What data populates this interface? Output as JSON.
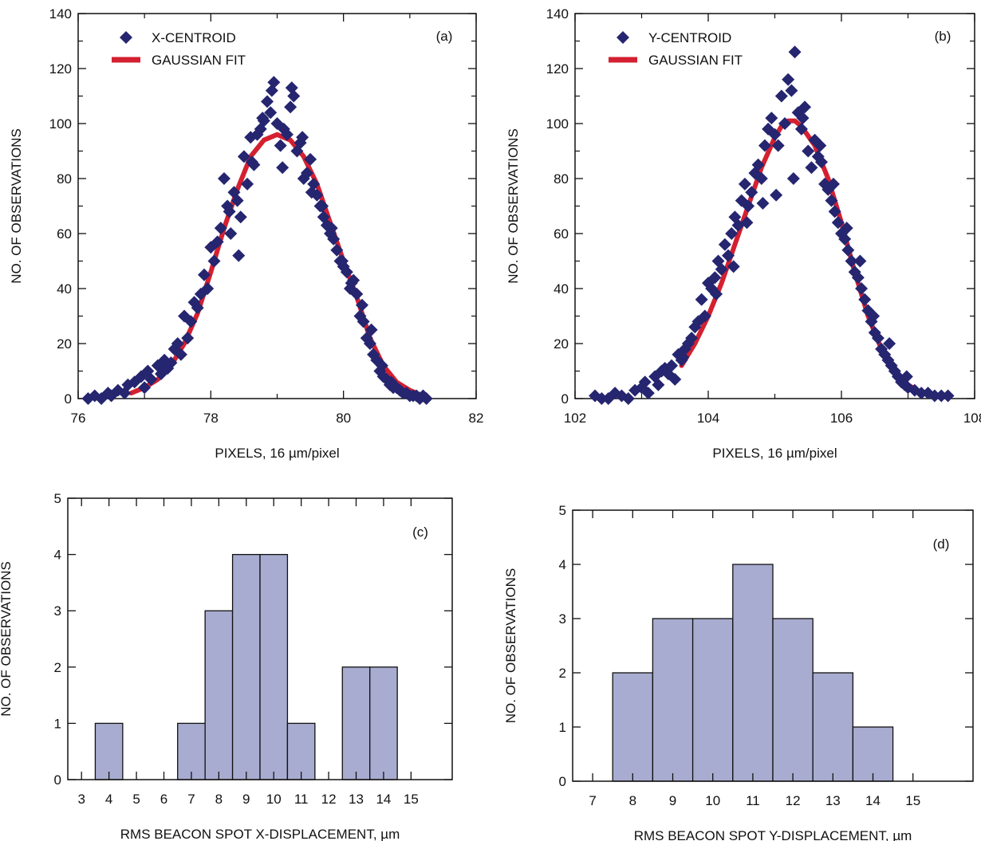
{
  "chart_data": [
    {
      "id": "a",
      "type": "scatter",
      "panel_label": "(a)",
      "xlabel": "PIXELS, 16 µm/pixel",
      "ylabel": "NO. OF OBSERVATIONS",
      "xlim": [
        76,
        82
      ],
      "ylim": [
        0,
        140
      ],
      "xticks": [
        76,
        78,
        80,
        82
      ],
      "yticks": [
        0,
        20,
        40,
        60,
        80,
        100,
        120,
        140
      ],
      "legend": {
        "position": "top-left",
        "entries": [
          "X-CENTROID",
          "GAUSSIAN FIT"
        ]
      },
      "colors": {
        "points": "#252570",
        "fit": "#d42030"
      },
      "series": [
        {
          "name": "X-CENTROID",
          "kind": "points",
          "x": [
            76.15,
            76.25,
            76.35,
            76.45,
            76.5,
            76.6,
            76.7,
            76.75,
            76.85,
            76.95,
            77.0,
            77.05,
            77.1,
            77.2,
            77.25,
            77.3,
            77.4,
            77.45,
            77.5,
            77.55,
            77.6,
            77.7,
            77.75,
            77.8,
            77.85,
            77.9,
            77.95,
            78.0,
            78.05,
            78.1,
            78.15,
            78.2,
            78.25,
            78.3,
            78.35,
            78.4,
            78.45,
            78.5,
            78.55,
            78.6,
            78.65,
            78.7,
            78.75,
            78.8,
            78.85,
            78.9,
            78.95,
            79.0,
            79.05,
            79.1,
            79.15,
            79.2,
            79.25,
            79.3,
            79.35,
            79.4,
            79.45,
            79.5,
            79.55,
            79.6,
            79.65,
            79.7,
            79.75,
            79.8,
            79.85,
            79.9,
            79.95,
            80.0,
            80.05,
            80.1,
            80.15,
            80.2,
            80.25,
            80.3,
            80.35,
            80.4,
            80.45,
            80.5,
            80.55,
            80.6,
            80.65,
            80.7,
            80.75,
            80.8,
            80.85,
            80.9,
            80.95,
            81.0,
            81.05,
            81.1,
            81.15,
            81.2,
            81.25,
            77.35,
            77.65,
            78.28,
            78.42,
            78.62,
            78.78,
            78.92,
            79.08,
            79.22,
            79.38,
            79.52,
            79.68,
            79.82,
            79.98,
            80.12,
            80.28,
            80.42,
            80.58,
            80.72
          ],
          "y": [
            0,
            1,
            0,
            2,
            1,
            3,
            2,
            5,
            6,
            8,
            4,
            10,
            7,
            12,
            9,
            14,
            13,
            18,
            20,
            16,
            30,
            28,
            35,
            33,
            38,
            45,
            40,
            55,
            50,
            57,
            62,
            80,
            70,
            60,
            75,
            72,
            66,
            88,
            78,
            95,
            85,
            96,
            98,
            101,
            108,
            104,
            115,
            100,
            92,
            98,
            96,
            106,
            110,
            90,
            93,
            80,
            82,
            87,
            78,
            74,
            70,
            66,
            63,
            60,
            58,
            54,
            50,
            48,
            46,
            40,
            43,
            38,
            30,
            28,
            22,
            20,
            16,
            14,
            10,
            8,
            7,
            5,
            4,
            4,
            3,
            2,
            2,
            1,
            1,
            1,
            0,
            1,
            0,
            11,
            22,
            68,
            52,
            86,
            102,
            112,
            84,
            113,
            95,
            75,
            70,
            62,
            50,
            42,
            34,
            25,
            12,
            6
          ],
          "sizes_unit": "data"
        },
        {
          "name": "GAUSSIAN FIT",
          "kind": "line",
          "x": [
            76.8,
            77.0,
            77.2,
            77.4,
            77.6,
            77.8,
            78.0,
            78.2,
            78.4,
            78.6,
            78.8,
            79.0,
            79.1,
            79.2,
            79.4,
            79.6,
            79.8,
            80.0,
            80.2,
            80.4,
            80.6,
            80.8,
            81.0,
            81.2
          ],
          "y": [
            2,
            4,
            7,
            12,
            20,
            31,
            46,
            62,
            76,
            88,
            94,
            96,
            95,
            94,
            88,
            78,
            64,
            50,
            37,
            22,
            12,
            6,
            3,
            1
          ]
        }
      ]
    },
    {
      "id": "b",
      "type": "scatter",
      "panel_label": "(b)",
      "xlabel": "PIXELS, 16 µm/pixel",
      "ylabel": "NO. OF OBSERVATIONS",
      "xlim": [
        102,
        108
      ],
      "ylim": [
        0,
        140
      ],
      "xticks": [
        102,
        104,
        106,
        108
      ],
      "yticks": [
        0,
        20,
        40,
        60,
        80,
        100,
        120,
        140
      ],
      "legend": {
        "position": "top-left",
        "entries": [
          "Y-CENTROID",
          "GAUSSIAN FIT"
        ]
      },
      "colors": {
        "points": "#252570",
        "fit": "#d42030"
      },
      "series": [
        {
          "name": "Y-CENTROID",
          "kind": "points",
          "x": [
            102.3,
            102.4,
            102.5,
            102.6,
            102.7,
            102.8,
            102.9,
            103.0,
            103.05,
            103.1,
            103.2,
            103.25,
            103.3,
            103.4,
            103.45,
            103.5,
            103.55,
            103.6,
            103.65,
            103.7,
            103.75,
            103.8,
            103.85,
            103.9,
            103.95,
            104.0,
            104.05,
            104.1,
            104.15,
            104.2,
            104.25,
            104.3,
            104.35,
            104.4,
            104.45,
            104.5,
            104.55,
            104.6,
            104.65,
            104.7,
            104.75,
            104.8,
            104.85,
            104.9,
            104.95,
            105.0,
            105.05,
            105.1,
            105.15,
            105.2,
            105.25,
            105.3,
            105.35,
            105.4,
            105.45,
            105.5,
            105.55,
            105.6,
            105.65,
            105.7,
            105.75,
            105.8,
            105.85,
            105.9,
            105.95,
            106.0,
            106.05,
            106.1,
            106.15,
            106.2,
            106.25,
            106.3,
            106.35,
            106.4,
            106.45,
            106.5,
            106.55,
            106.6,
            106.65,
            106.7,
            106.75,
            106.8,
            106.85,
            106.9,
            106.95,
            107.0,
            107.1,
            107.2,
            107.3,
            107.4,
            107.5,
            107.6,
            103.35,
            103.62,
            104.12,
            104.38,
            104.58,
            104.82,
            105.02,
            105.28,
            105.42,
            105.68,
            105.88,
            106.08,
            106.28,
            106.48,
            106.72,
            106.98
          ],
          "y": [
            1,
            0,
            0,
            2,
            1,
            0,
            3,
            4,
            6,
            2,
            8,
            5,
            10,
            9,
            12,
            7,
            16,
            14,
            18,
            20,
            22,
            26,
            28,
            36,
            30,
            42,
            40,
            44,
            50,
            47,
            56,
            52,
            60,
            66,
            63,
            72,
            78,
            70,
            75,
            82,
            85,
            80,
            92,
            98,
            102,
            96,
            92,
            110,
            100,
            116,
            112,
            126,
            104,
            98,
            106,
            90,
            84,
            94,
            88,
            86,
            78,
            76,
            72,
            68,
            64,
            60,
            58,
            54,
            50,
            46,
            44,
            40,
            36,
            32,
            28,
            24,
            22,
            18,
            16,
            14,
            12,
            10,
            8,
            6,
            5,
            4,
            3,
            2,
            2,
            1,
            1,
            1,
            11,
            15,
            38,
            48,
            64,
            71,
            74,
            80,
            102,
            92,
            78,
            62,
            50,
            30,
            20,
            8
          ],
          "sizes_unit": "data"
        },
        {
          "name": "GAUSSIAN FIT",
          "kind": "line",
          "x": [
            103.6,
            103.8,
            104.0,
            104.2,
            104.4,
            104.6,
            104.8,
            105.0,
            105.1,
            105.2,
            105.3,
            105.4,
            105.6,
            105.8,
            106.0,
            106.2,
            106.4,
            106.6,
            106.8,
            107.0,
            107.2,
            107.4
          ],
          "y": [
            12,
            20,
            30,
            42,
            56,
            70,
            84,
            95,
            99,
            101,
            101,
            99,
            92,
            80,
            64,
            46,
            30,
            18,
            10,
            5,
            2,
            1
          ]
        }
      ]
    },
    {
      "id": "c",
      "type": "bar",
      "panel_label": "(c)",
      "xlabel": "RMS BEACON SPOT X-DISPLACEMENT, µm",
      "ylabel": "NO. OF OBSERVATIONS",
      "xlim": [
        2.5,
        16.5
      ],
      "ylim": [
        0,
        5
      ],
      "xticks": [
        3,
        4,
        5,
        6,
        7,
        8,
        9,
        10,
        11,
        12,
        13,
        14,
        15
      ],
      "yticks": [
        0,
        1,
        2,
        3,
        4,
        5
      ],
      "categories": [
        4,
        7,
        8,
        9,
        10,
        11,
        13,
        14
      ],
      "values": [
        1,
        1,
        3,
        4,
        4,
        1,
        2,
        2
      ],
      "colors": {
        "bar_fill": "#a8acd0"
      }
    },
    {
      "id": "d",
      "type": "bar",
      "panel_label": "(d)",
      "xlabel": "RMS BEACON SPOT Y-DISPLACEMENT, µm",
      "ylabel": "NO. OF OBSERVATIONS",
      "xlim": [
        6.5,
        16.5
      ],
      "ylim": [
        0,
        5
      ],
      "xticks": [
        7,
        8,
        9,
        10,
        11,
        12,
        13,
        14,
        15
      ],
      "yticks": [
        0,
        1,
        2,
        3,
        4,
        5
      ],
      "categories": [
        8,
        9,
        10,
        11,
        12,
        13,
        14
      ],
      "values": [
        2,
        3,
        3,
        4,
        3,
        2,
        1
      ],
      "colors": {
        "bar_fill": "#a8acd0"
      }
    }
  ]
}
